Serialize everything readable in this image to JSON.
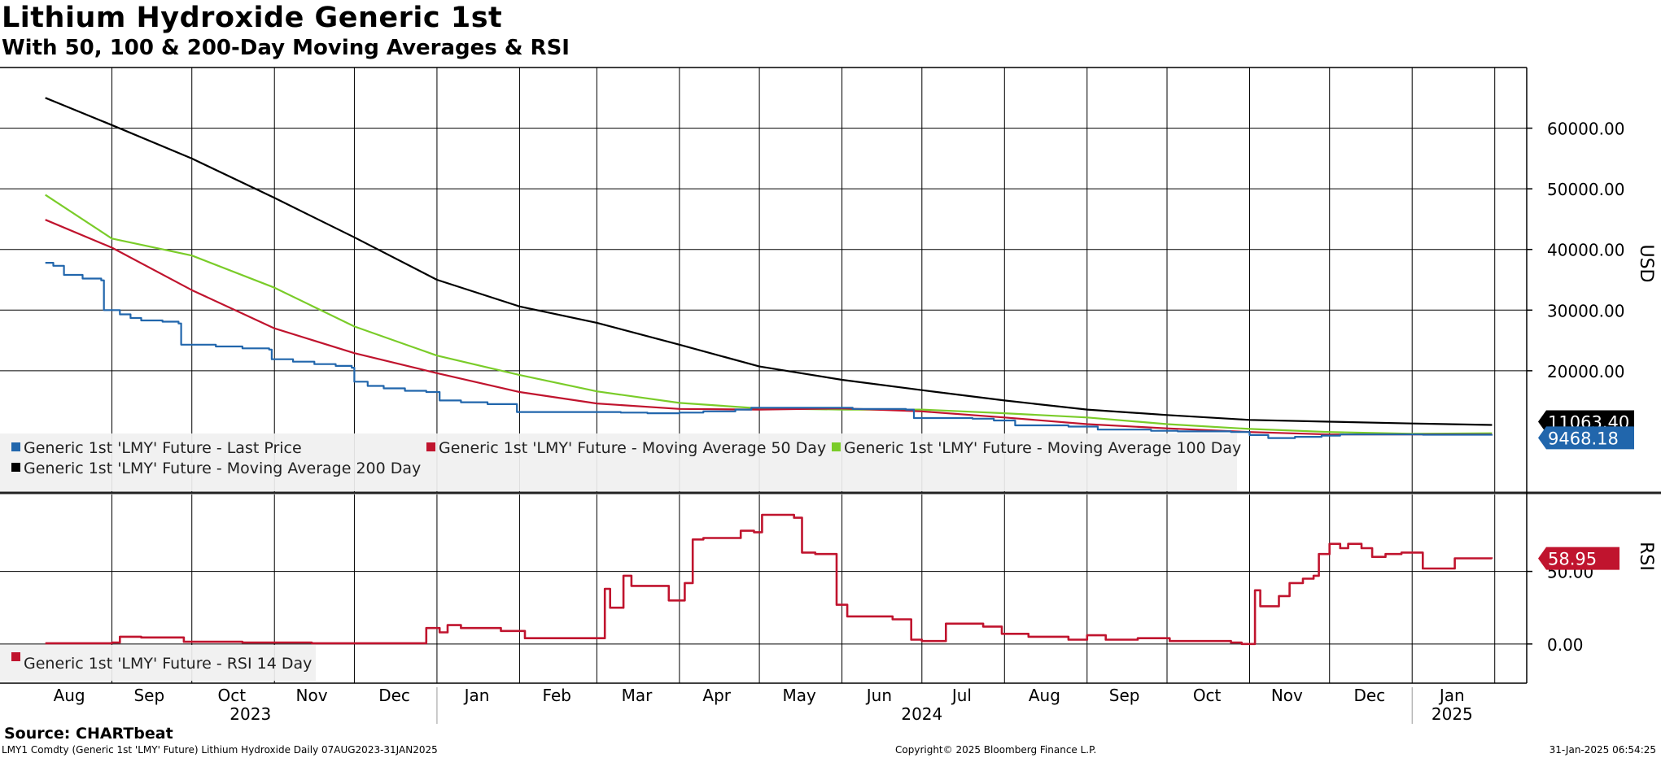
{
  "title": "Lithium Hydroxide Generic 1st",
  "subtitle": "With 50, 100 & 200-Day Moving Averages & RSI",
  "source": "Source: CHARTbeat",
  "footer": {
    "left": "LMY1 Comdty (Generic 1st 'LMY' Future) Lithium Hydroxide  Daily 07AUG2023-31JAN2025",
    "middle": "Copyright© 2025 Bloomberg Finance L.P.",
    "right": "31-Jan-2025 06:54:25"
  },
  "chart_data": [
    {
      "type": "line",
      "panel": "price",
      "ylabel": "USD",
      "ylim": [
        0,
        70000
      ],
      "yticks": [
        "20000.00",
        "30000.00",
        "40000.00",
        "50000.00",
        "60000.00"
      ],
      "ytick_values": [
        20000,
        30000,
        40000,
        50000,
        60000
      ],
      "grid": true,
      "legend_position": "bottom-left",
      "x_range": [
        "2023-08-07",
        "2025-01-31"
      ],
      "last_value_labels": [
        {
          "series": "Generic 1st 'LMY' Future - Moving Average 200 Day",
          "text": "11063.40",
          "value": 11063.4,
          "color": "#000000"
        },
        {
          "series": "Generic 1st 'LMY' Future - Last Price",
          "text": "9468.18",
          "value": 9468.18,
          "color": "#2166ac"
        }
      ],
      "series": [
        {
          "name": "Generic 1st 'LMY' Future - Last Price",
          "color": "#2166ac",
          "step": true,
          "points": [
            [
              "2023-08-07",
              37800
            ],
            [
              "2023-08-10",
              37300
            ],
            [
              "2023-08-14",
              35800
            ],
            [
              "2023-08-21",
              35200
            ],
            [
              "2023-08-28",
              34900
            ],
            [
              "2023-08-29",
              30000
            ],
            [
              "2023-09-04",
              29300
            ],
            [
              "2023-09-08",
              28700
            ],
            [
              "2023-09-12",
              28300
            ],
            [
              "2023-09-20",
              28100
            ],
            [
              "2023-09-26",
              27800
            ],
            [
              "2023-09-27",
              24300
            ],
            [
              "2023-10-10",
              24000
            ],
            [
              "2023-10-20",
              23700
            ],
            [
              "2023-10-30",
              23500
            ],
            [
              "2023-10-31",
              21900
            ],
            [
              "2023-11-08",
              21500
            ],
            [
              "2023-11-16",
              21100
            ],
            [
              "2023-11-24",
              20800
            ],
            [
              "2023-11-30",
              20500
            ],
            [
              "2023-12-01",
              18200
            ],
            [
              "2023-12-06",
              17500
            ],
            [
              "2023-12-12",
              17100
            ],
            [
              "2023-12-20",
              16700
            ],
            [
              "2023-12-28",
              16500
            ],
            [
              "2024-01-02",
              15100
            ],
            [
              "2024-01-10",
              14800
            ],
            [
              "2024-01-20",
              14500
            ],
            [
              "2024-01-31",
              13200
            ],
            [
              "2024-02-15",
              13200
            ],
            [
              "2024-03-01",
              13200
            ],
            [
              "2024-03-10",
              13100
            ],
            [
              "2024-03-20",
              13000
            ],
            [
              "2024-04-01",
              13100
            ],
            [
              "2024-04-10",
              13300
            ],
            [
              "2024-04-22",
              13600
            ],
            [
              "2024-04-28",
              13900
            ],
            [
              "2024-05-20",
              13900
            ],
            [
              "2024-06-05",
              13700
            ],
            [
              "2024-06-25",
              13600
            ],
            [
              "2024-06-28",
              12200
            ],
            [
              "2024-07-20",
              12100
            ],
            [
              "2024-07-28",
              11800
            ],
            [
              "2024-08-05",
              11000
            ],
            [
              "2024-08-25",
              10800
            ],
            [
              "2024-09-05",
              10300
            ],
            [
              "2024-09-25",
              10100
            ],
            [
              "2024-10-05",
              10000
            ],
            [
              "2024-10-25",
              9900
            ],
            [
              "2024-11-01",
              9400
            ],
            [
              "2024-11-08",
              8900
            ],
            [
              "2024-11-18",
              9100
            ],
            [
              "2024-11-28",
              9300
            ],
            [
              "2024-12-05",
              9500
            ],
            [
              "2024-12-20",
              9500
            ],
            [
              "2025-01-05",
              9450
            ],
            [
              "2025-01-31",
              9468.18
            ]
          ]
        },
        {
          "name": "Generic 1st 'LMY' Future - Moving Average 50 Day",
          "color": "#c0142e",
          "points": [
            [
              "2023-08-07",
              44900
            ],
            [
              "2023-09-01",
              40300
            ],
            [
              "2023-10-01",
              33300
            ],
            [
              "2023-11-01",
              27000
            ],
            [
              "2023-12-01",
              22900
            ],
            [
              "2024-01-01",
              19600
            ],
            [
              "2024-02-01",
              16500
            ],
            [
              "2024-03-01",
              14600
            ],
            [
              "2024-04-01",
              13700
            ],
            [
              "2024-05-01",
              13600
            ],
            [
              "2024-06-01",
              13800
            ],
            [
              "2024-07-01",
              13300
            ],
            [
              "2024-08-01",
              12300
            ],
            [
              "2024-09-01",
              11200
            ],
            [
              "2024-10-01",
              10500
            ],
            [
              "2024-11-01",
              9900
            ],
            [
              "2024-12-01",
              9500
            ],
            [
              "2025-01-01",
              9500
            ],
            [
              "2025-01-31",
              9500
            ]
          ]
        },
        {
          "name": "Generic 1st 'LMY' Future - Moving Average 100 Day",
          "color": "#7acc29",
          "points": [
            [
              "2023-08-07",
              49000
            ],
            [
              "2023-09-01",
              41800
            ],
            [
              "2023-10-01",
              39000
            ],
            [
              "2023-11-01",
              33700
            ],
            [
              "2023-12-01",
              27300
            ],
            [
              "2024-01-01",
              22500
            ],
            [
              "2024-02-01",
              19300
            ],
            [
              "2024-03-01",
              16600
            ],
            [
              "2024-04-01",
              14700
            ],
            [
              "2024-05-01",
              13800
            ],
            [
              "2024-06-01",
              13600
            ],
            [
              "2024-07-01",
              13600
            ],
            [
              "2024-08-01",
              13000
            ],
            [
              "2024-09-01",
              12300
            ],
            [
              "2024-10-01",
              11200
            ],
            [
              "2024-11-01",
              10400
            ],
            [
              "2024-12-01",
              9900
            ],
            [
              "2025-01-01",
              9600
            ],
            [
              "2025-01-31",
              9700
            ]
          ]
        },
        {
          "name": "Generic 1st 'LMY' Future - Moving Average 200 Day",
          "color": "#000000",
          "points": [
            [
              "2023-08-07",
              65000
            ],
            [
              "2023-09-01",
              60500
            ],
            [
              "2023-10-01",
              55000
            ],
            [
              "2023-11-01",
              48500
            ],
            [
              "2023-12-01",
              42000
            ],
            [
              "2024-01-01",
              35000
            ],
            [
              "2024-02-01",
              30600
            ],
            [
              "2024-03-01",
              27900
            ],
            [
              "2024-04-01",
              24300
            ],
            [
              "2024-05-01",
              20700
            ],
            [
              "2024-06-01",
              18500
            ],
            [
              "2024-07-01",
              16800
            ],
            [
              "2024-08-01",
              15100
            ],
            [
              "2024-09-01",
              13600
            ],
            [
              "2024-10-01",
              12700
            ],
            [
              "2024-11-01",
              11900
            ],
            [
              "2024-12-01",
              11600
            ],
            [
              "2025-01-01",
              11300
            ],
            [
              "2025-01-31",
              11063.4
            ]
          ]
        }
      ]
    },
    {
      "type": "line",
      "panel": "rsi",
      "ylabel": "RSI",
      "ylim": [
        -27,
        103
      ],
      "yticks": [
        "0.00",
        "50.00"
      ],
      "ytick_values": [
        0,
        50
      ],
      "grid": true,
      "legend_position": "bottom-left",
      "last_value_labels": [
        {
          "series": "Generic 1st 'LMY' Future - RSI 14 Day",
          "text": "58.95",
          "value": 58.95,
          "color": "#c0142e"
        }
      ],
      "series": [
        {
          "name": "Generic 1st 'LMY' Future - RSI 14 Day",
          "color": "#c0142e",
          "step": true,
          "points": [
            [
              "2023-08-07",
              0.5
            ],
            [
              "2023-09-01",
              1
            ],
            [
              "2023-09-04",
              5
            ],
            [
              "2023-09-12",
              4.5
            ],
            [
              "2023-09-28",
              1.5
            ],
            [
              "2023-10-20",
              1
            ],
            [
              "2023-11-15",
              0.5
            ],
            [
              "2023-12-10",
              0.5
            ],
            [
              "2023-12-28",
              11
            ],
            [
              "2024-01-02",
              8
            ],
            [
              "2024-01-05",
              13
            ],
            [
              "2024-01-10",
              11
            ],
            [
              "2024-01-25",
              9
            ],
            [
              "2024-02-03",
              4
            ],
            [
              "2024-03-01",
              4
            ],
            [
              "2024-03-04",
              38
            ],
            [
              "2024-03-06",
              25
            ],
            [
              "2024-03-11",
              47
            ],
            [
              "2024-03-14",
              40
            ],
            [
              "2024-03-28",
              30
            ],
            [
              "2024-04-03",
              42
            ],
            [
              "2024-04-06",
              72
            ],
            [
              "2024-04-10",
              73
            ],
            [
              "2024-04-24",
              78
            ],
            [
              "2024-04-29",
              77
            ],
            [
              "2024-05-02",
              89
            ],
            [
              "2024-05-14",
              87
            ],
            [
              "2024-05-17",
              63
            ],
            [
              "2024-05-22",
              62
            ],
            [
              "2024-05-30",
              27
            ],
            [
              "2024-06-03",
              19
            ],
            [
              "2024-06-20",
              17
            ],
            [
              "2024-06-27",
              3
            ],
            [
              "2024-07-01",
              2
            ],
            [
              "2024-07-07",
              2
            ],
            [
              "2024-07-10",
              14
            ],
            [
              "2024-07-24",
              12
            ],
            [
              "2024-07-31",
              7
            ],
            [
              "2024-08-10",
              5
            ],
            [
              "2024-08-25",
              3
            ],
            [
              "2024-09-01",
              6
            ],
            [
              "2024-09-08",
              3
            ],
            [
              "2024-09-20",
              4
            ],
            [
              "2024-10-02",
              2
            ],
            [
              "2024-10-25",
              1
            ],
            [
              "2024-10-29",
              0
            ],
            [
              "2024-11-03",
              37
            ],
            [
              "2024-11-05",
              26
            ],
            [
              "2024-11-12",
              33
            ],
            [
              "2024-11-16",
              42
            ],
            [
              "2024-11-21",
              45
            ],
            [
              "2024-11-25",
              47
            ],
            [
              "2024-11-27",
              62
            ],
            [
              "2024-12-01",
              69
            ],
            [
              "2024-12-05",
              66
            ],
            [
              "2024-12-08",
              69
            ],
            [
              "2024-12-13",
              66
            ],
            [
              "2024-12-17",
              60
            ],
            [
              "2024-12-22",
              62
            ],
            [
              "2024-12-28",
              63
            ],
            [
              "2025-01-05",
              52
            ],
            [
              "2025-01-14",
              52
            ],
            [
              "2025-01-17",
              59
            ],
            [
              "2025-01-31",
              58.95
            ]
          ]
        }
      ]
    }
  ],
  "x_axis": {
    "months": [
      {
        "label": "Aug",
        "date": "2023-08-16"
      },
      {
        "label": "Sep",
        "date": "2023-09-15"
      },
      {
        "label": "Oct",
        "date": "2023-10-16"
      },
      {
        "label": "Nov",
        "date": "2023-11-15"
      },
      {
        "label": "Dec",
        "date": "2023-12-16"
      },
      {
        "label": "Jan",
        "date": "2024-01-16"
      },
      {
        "label": "Feb",
        "date": "2024-02-15"
      },
      {
        "label": "Mar",
        "date": "2024-03-16"
      },
      {
        "label": "Apr",
        "date": "2024-04-15"
      },
      {
        "label": "May",
        "date": "2024-05-16"
      },
      {
        "label": "Jun",
        "date": "2024-06-15"
      },
      {
        "label": "Jul",
        "date": "2024-07-16"
      },
      {
        "label": "Aug",
        "date": "2024-08-16"
      },
      {
        "label": "Sep",
        "date": "2024-09-15"
      },
      {
        "label": "Oct",
        "date": "2024-10-16"
      },
      {
        "label": "Nov",
        "date": "2024-11-15"
      },
      {
        "label": "Dec",
        "date": "2024-12-16"
      },
      {
        "label": "Jan",
        "date": "2025-01-16"
      }
    ],
    "gridlines": [
      "2023-09-01",
      "2023-10-01",
      "2023-11-01",
      "2023-12-01",
      "2024-01-01",
      "2024-02-01",
      "2024-03-01",
      "2024-04-01",
      "2024-05-01",
      "2024-06-01",
      "2024-07-01",
      "2024-08-01",
      "2024-09-01",
      "2024-10-01",
      "2024-11-01",
      "2024-12-01",
      "2025-01-01",
      "2025-02-01"
    ],
    "years": [
      {
        "label": "2023",
        "date": "2023-10-23"
      },
      {
        "label": "2024",
        "date": "2024-07-01"
      },
      {
        "label": "2025",
        "date": "2025-01-16"
      }
    ],
    "year_separators": [
      "2024-01-01",
      "2025-01-01"
    ]
  }
}
